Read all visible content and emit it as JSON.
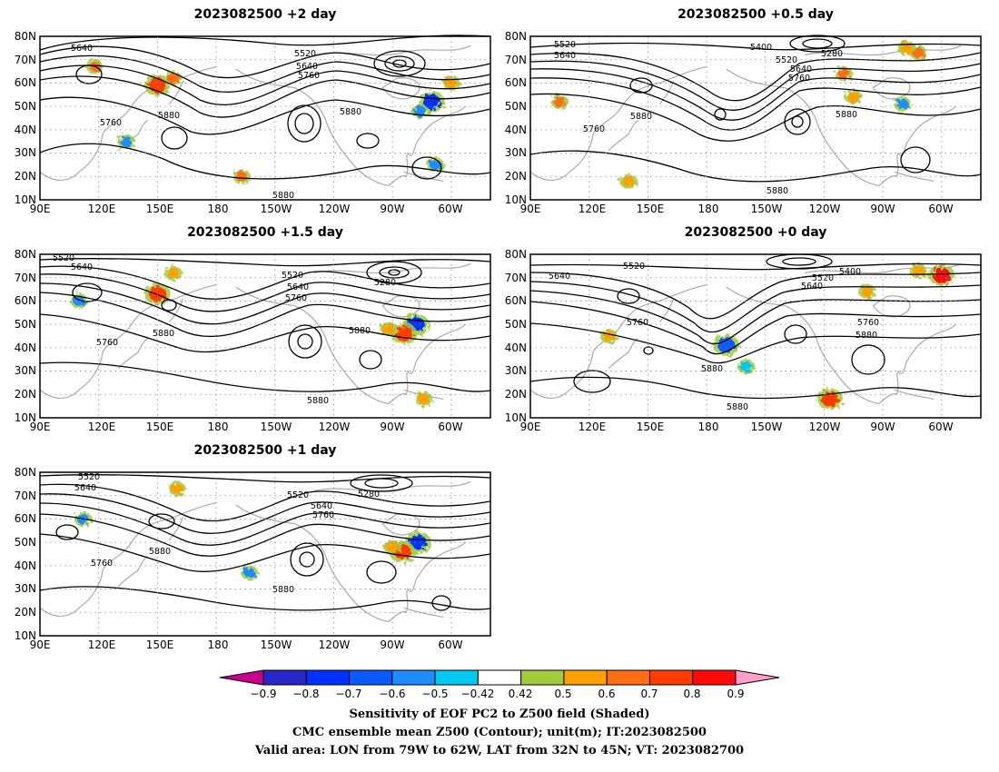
{
  "panels": [
    {
      "title": "2023082500 +2 day",
      "contour_labels": [
        "5640",
        "5520",
        "5640",
        "5760",
        "5760",
        "5880",
        "5880",
        "5880"
      ],
      "sensitivity_patches": [
        {
          "lon": 150,
          "lat": 59,
          "value": 0.7
        },
        {
          "lon": 158,
          "lat": 62,
          "value": 0.6
        },
        {
          "lon": 118,
          "lat": 67,
          "value": 0.6
        },
        {
          "lon": 193,
          "lat": 20,
          "value": 0.6
        },
        {
          "lon": 290,
          "lat": 52,
          "value": -0.8
        },
        {
          "lon": 284,
          "lat": 48,
          "value": -0.6
        },
        {
          "lon": 292,
          "lat": 25,
          "value": -0.6
        },
        {
          "lon": 300,
          "lat": 60,
          "value": 0.5
        },
        {
          "lon": 134,
          "lat": 35,
          "value": -0.6
        }
      ]
    },
    {
      "title": "2023082500 +0.5 day",
      "contour_labels": [
        "5520",
        "5640",
        "5400",
        "5280",
        "5520",
        "5640",
        "5760",
        "5760",
        "5880",
        "5880",
        "5880"
      ],
      "sensitivity_patches": [
        {
          "lon": 255,
          "lat": 54,
          "value": 0.5
        },
        {
          "lon": 250,
          "lat": 64,
          "value": 0.6
        },
        {
          "lon": 280,
          "lat": 51,
          "value": -0.6
        },
        {
          "lon": 288,
          "lat": 73,
          "value": 0.6
        },
        {
          "lon": 282,
          "lat": 75,
          "value": 0.5
        },
        {
          "lon": 140,
          "lat": 18,
          "value": 0.5
        },
        {
          "lon": 105,
          "lat": 52,
          "value": 0.6
        }
      ]
    },
    {
      "title": "2023082500 +1.5 day",
      "contour_labels": [
        "5520",
        "5640",
        "5520",
        "5640",
        "5760",
        "5280",
        "5760",
        "5880",
        "5880",
        "5880"
      ],
      "sensitivity_patches": [
        {
          "lon": 150,
          "lat": 63,
          "value": 0.7
        },
        {
          "lon": 158,
          "lat": 72,
          "value": 0.5
        },
        {
          "lon": 282,
          "lat": 50,
          "value": -0.8
        },
        {
          "lon": 276,
          "lat": 46,
          "value": 0.7
        },
        {
          "lon": 268,
          "lat": 48,
          "value": 0.5
        },
        {
          "lon": 286,
          "lat": 18,
          "value": 0.5
        },
        {
          "lon": 110,
          "lat": 60,
          "value": -0.6
        }
      ]
    },
    {
      "title": "2023082500 +0 day",
      "contour_labels": [
        "5520",
        "5640",
        "5520",
        "5400",
        "5640",
        "5760",
        "5760",
        "5880",
        "5880",
        "5880"
      ],
      "sensitivity_patches": [
        {
          "lon": 190,
          "lat": 41,
          "value": -0.7
        },
        {
          "lon": 200,
          "lat": 32,
          "value": -0.5
        },
        {
          "lon": 300,
          "lat": 71,
          "value": 0.8
        },
        {
          "lon": 288,
          "lat": 73,
          "value": 0.5
        },
        {
          "lon": 262,
          "lat": 64,
          "value": 0.5
        },
        {
          "lon": 243,
          "lat": 18,
          "value": 0.7
        },
        {
          "lon": 130,
          "lat": 45,
          "value": 0.5
        }
      ]
    },
    {
      "title": "2023082500 +1 day",
      "contour_labels": [
        "5520",
        "5640",
        "5520",
        "5280",
        "5640",
        "5760",
        "5880",
        "5760",
        "5880"
      ],
      "sensitivity_patches": [
        {
          "lon": 283,
          "lat": 50,
          "value": -0.8
        },
        {
          "lon": 275,
          "lat": 46,
          "value": 0.7
        },
        {
          "lon": 270,
          "lat": 48,
          "value": 0.5
        },
        {
          "lon": 112,
          "lat": 60,
          "value": -0.6
        },
        {
          "lon": 197,
          "lat": 37,
          "value": -0.6
        },
        {
          "lon": 160,
          "lat": 73,
          "value": 0.5
        }
      ]
    }
  ],
  "axes": {
    "lon_ticks": [
      "90E",
      "120E",
      "150E",
      "180",
      "150W",
      "120W",
      "90W",
      "60W"
    ],
    "lat_ticks": [
      "80N",
      "70N",
      "60N",
      "50N",
      "40N",
      "30N",
      "20N",
      "10N"
    ]
  },
  "colorbar": {
    "tick_labels": [
      "−0.9",
      "−0.8",
      "−0.7",
      "−0.6",
      "−0.5",
      "−0.42",
      "0.42",
      "0.5",
      "0.6",
      "0.7",
      "0.8",
      "0.9"
    ],
    "colors": [
      "#2828c8",
      "#0032ff",
      "#0a5aff",
      "#1e8cff",
      "#00c8f0",
      "#ffffff",
      "#a0cc3c",
      "#ffa000",
      "#ff6e14",
      "#ff3c00",
      "#ff0a0a"
    ],
    "low_color": "#c8008c",
    "high_color": "#ffa0c8"
  },
  "caption": [
    "Sensitivity of EOF PC2 to Z500 field (Shaded)",
    "CMC ensemble mean Z500 (Contour); unit(m); IT:2023082500",
    "Valid area: LON from 79W to 62W, LAT from 32N to 45N; VT: 2023082700"
  ]
}
